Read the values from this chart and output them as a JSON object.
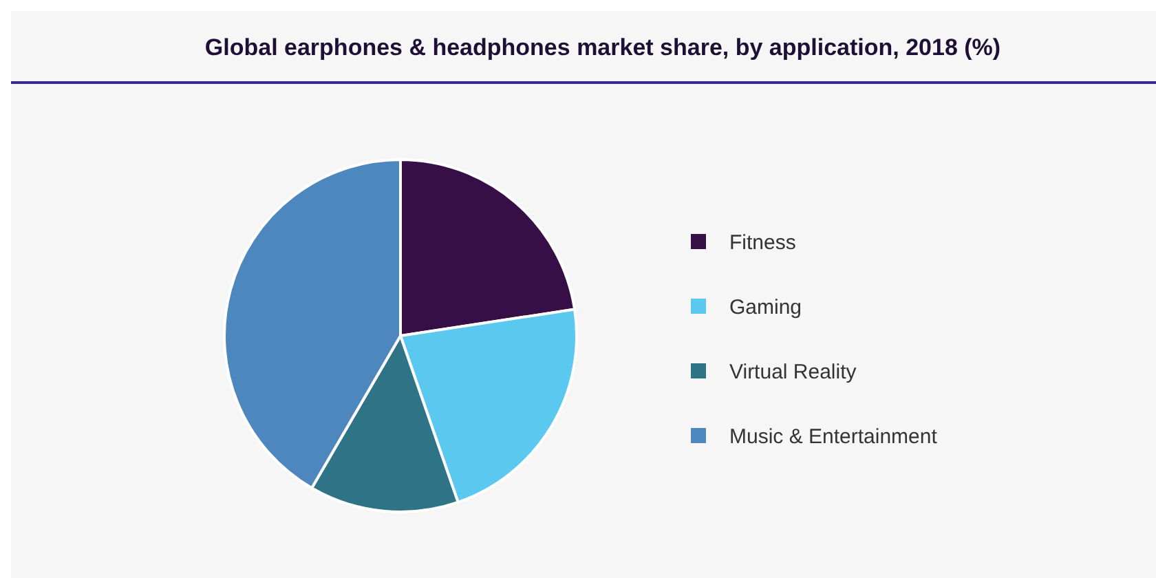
{
  "chart_data": {
    "type": "pie",
    "title": "Global earphones & headphones market share, by application, 2018 (%)",
    "categories": [
      "Fitness",
      "Gaming",
      "Virtual Reality",
      "Music & Entertainment"
    ],
    "values": [
      22.6,
      22.1,
      13.7,
      41.6
    ],
    "colors": [
      "#360f47",
      "#5bc8f0",
      "#2e7486",
      "#4e87bd"
    ],
    "legend": "right"
  }
}
